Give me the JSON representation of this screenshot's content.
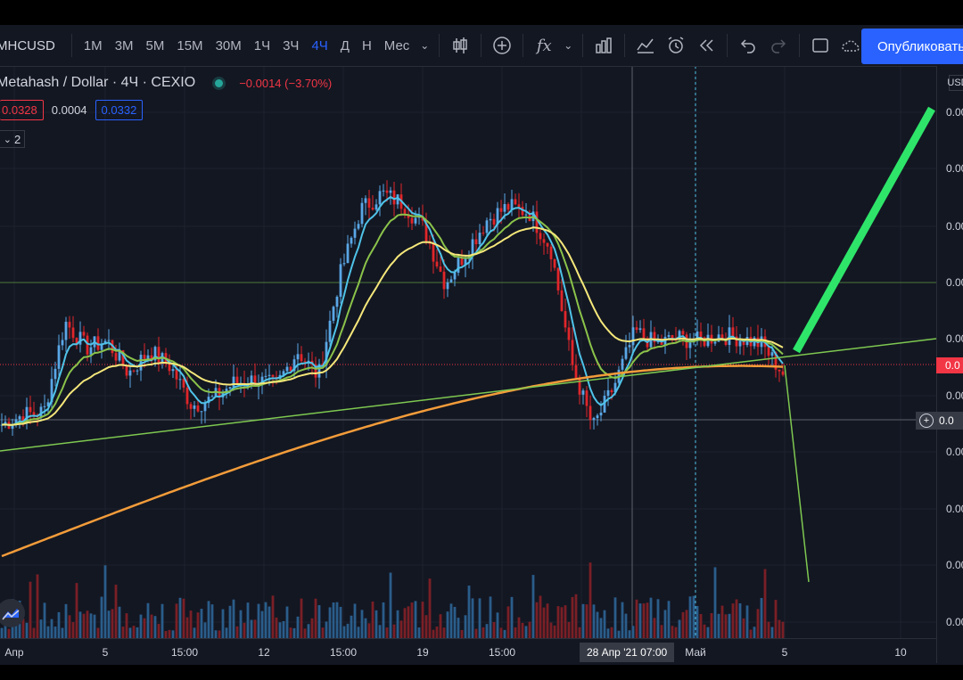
{
  "toolbar": {
    "symbol": "MHCUSD",
    "intervals": [
      "1М",
      "3М",
      "5М",
      "15М",
      "30М",
      "1Ч",
      "3Ч",
      "4Ч",
      "Д",
      "Н",
      "Мес"
    ],
    "active_interval": "4Ч",
    "publish_label": "Опубликовать"
  },
  "legend": {
    "title": "Metahash / Dollar · 4Ч · CEXIO",
    "change": "−0.0014 (−3.70%)",
    "bid": "0.0328",
    "spread": "0.0004",
    "ask": "0.0332",
    "indicators_count": "2"
  },
  "price_axis": {
    "currency": "USD",
    "labels": [
      "0.00",
      "0.00",
      "0.00",
      "0.00",
      "0.00",
      "0.00",
      "0.00",
      "0.00",
      "0.00",
      "0.00"
    ],
    "current_price_label": "0.0",
    "crosshair_price_label": "0.0"
  },
  "time_axis": {
    "labels": [
      "Апр",
      "5",
      "15:00",
      "12",
      "15:00",
      "19",
      "15:00",
      "Май",
      "5",
      "10"
    ],
    "crosshair_label": "28 Апр '21   07:00"
  },
  "colors": {
    "up": "#5aa7e6",
    "down": "#e0262a",
    "ema_fast": "#4fc3e8",
    "ema_mid": "#8bc34a",
    "ema_slow": "#f5e77a",
    "ema_long": "#f39c3a",
    "trendline": "#7ec850",
    "arrow_up": "#2ee56a",
    "accent": "#2962ff"
  },
  "chart_data": {
    "type": "candlestick",
    "symbol": "Metahash / Dollar",
    "timeframe": "4Ч",
    "exchange": "CEXIO",
    "x_ticks": [
      "Апр",
      "5",
      "15:00",
      "12",
      "15:00",
      "19",
      "15:00",
      "28 Апр '21 07:00",
      "Май",
      "5",
      "10"
    ],
    "close_path": [
      0.06,
      0.09,
      0.1,
      0.38,
      0.3,
      0.32,
      0.22,
      0.29,
      0.24,
      0.12,
      0.14,
      0.19,
      0.2,
      0.18,
      0.29,
      0.21,
      0.52,
      0.73,
      0.78,
      0.75,
      0.67,
      0.5,
      0.6,
      0.7,
      0.74,
      0.72,
      0.61,
      0.25,
      0.05,
      0.18,
      0.35,
      0.31,
      0.33,
      0.32,
      0.34,
      0.33,
      0.31,
      0.22
    ],
    "indicators": [
      "EMA fast",
      "EMA mid",
      "EMA slow",
      "EMA long"
    ],
    "drawings": [
      "horizontal line",
      "trend line",
      "projection arrow up",
      "projection line down"
    ],
    "volume": true,
    "last_change": "−0.0014 (−3.70%)"
  }
}
